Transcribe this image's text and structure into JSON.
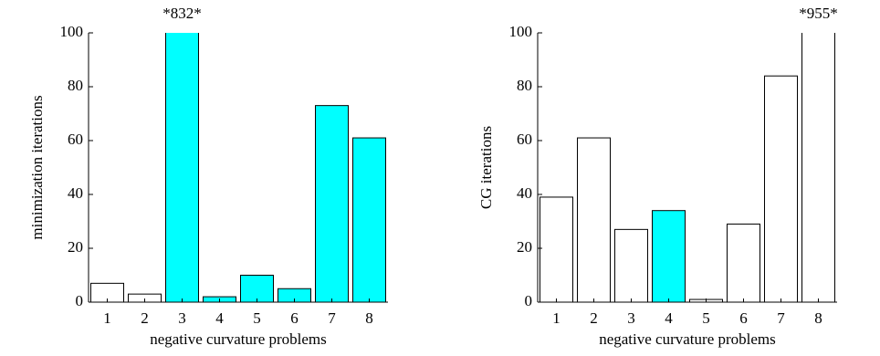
{
  "chart_data": [
    {
      "type": "bar",
      "y_label": "minimization iterations",
      "x_label": "negative curvature problems",
      "categories": [
        "1",
        "2",
        "3",
        "4",
        "5",
        "6",
        "7",
        "8"
      ],
      "values": [
        7,
        3,
        832,
        2,
        10,
        5,
        73,
        61
      ],
      "value_labels": [
        null,
        null,
        "*832*",
        null,
        null,
        null,
        null,
        null
      ],
      "colors": [
        "#ffffff",
        "#ffffff",
        "#00ffff",
        "#00ffff",
        "#00ffff",
        "#00ffff",
        "#00ffff",
        "#00ffff"
      ],
      "ylim": [
        0,
        100
      ],
      "yticks": [
        0,
        20,
        40,
        60,
        80,
        100
      ]
    },
    {
      "type": "bar",
      "y_label": "CG iterations",
      "x_label": "negative curvature problems",
      "categories": [
        "1",
        "2",
        "3",
        "4",
        "5",
        "6",
        "7",
        "8"
      ],
      "values": [
        39,
        61,
        27,
        34,
        1,
        29,
        84,
        955
      ],
      "value_labels": [
        null,
        null,
        null,
        null,
        null,
        null,
        null,
        "*955*"
      ],
      "colors": [
        "#ffffff",
        "#ffffff",
        "#ffffff",
        "#00ffff",
        "#ffffff",
        "#ffffff",
        "#ffffff",
        "#ffffff"
      ],
      "ylim": [
        0,
        100
      ],
      "yticks": [
        0,
        20,
        40,
        60,
        80,
        100
      ]
    }
  ]
}
